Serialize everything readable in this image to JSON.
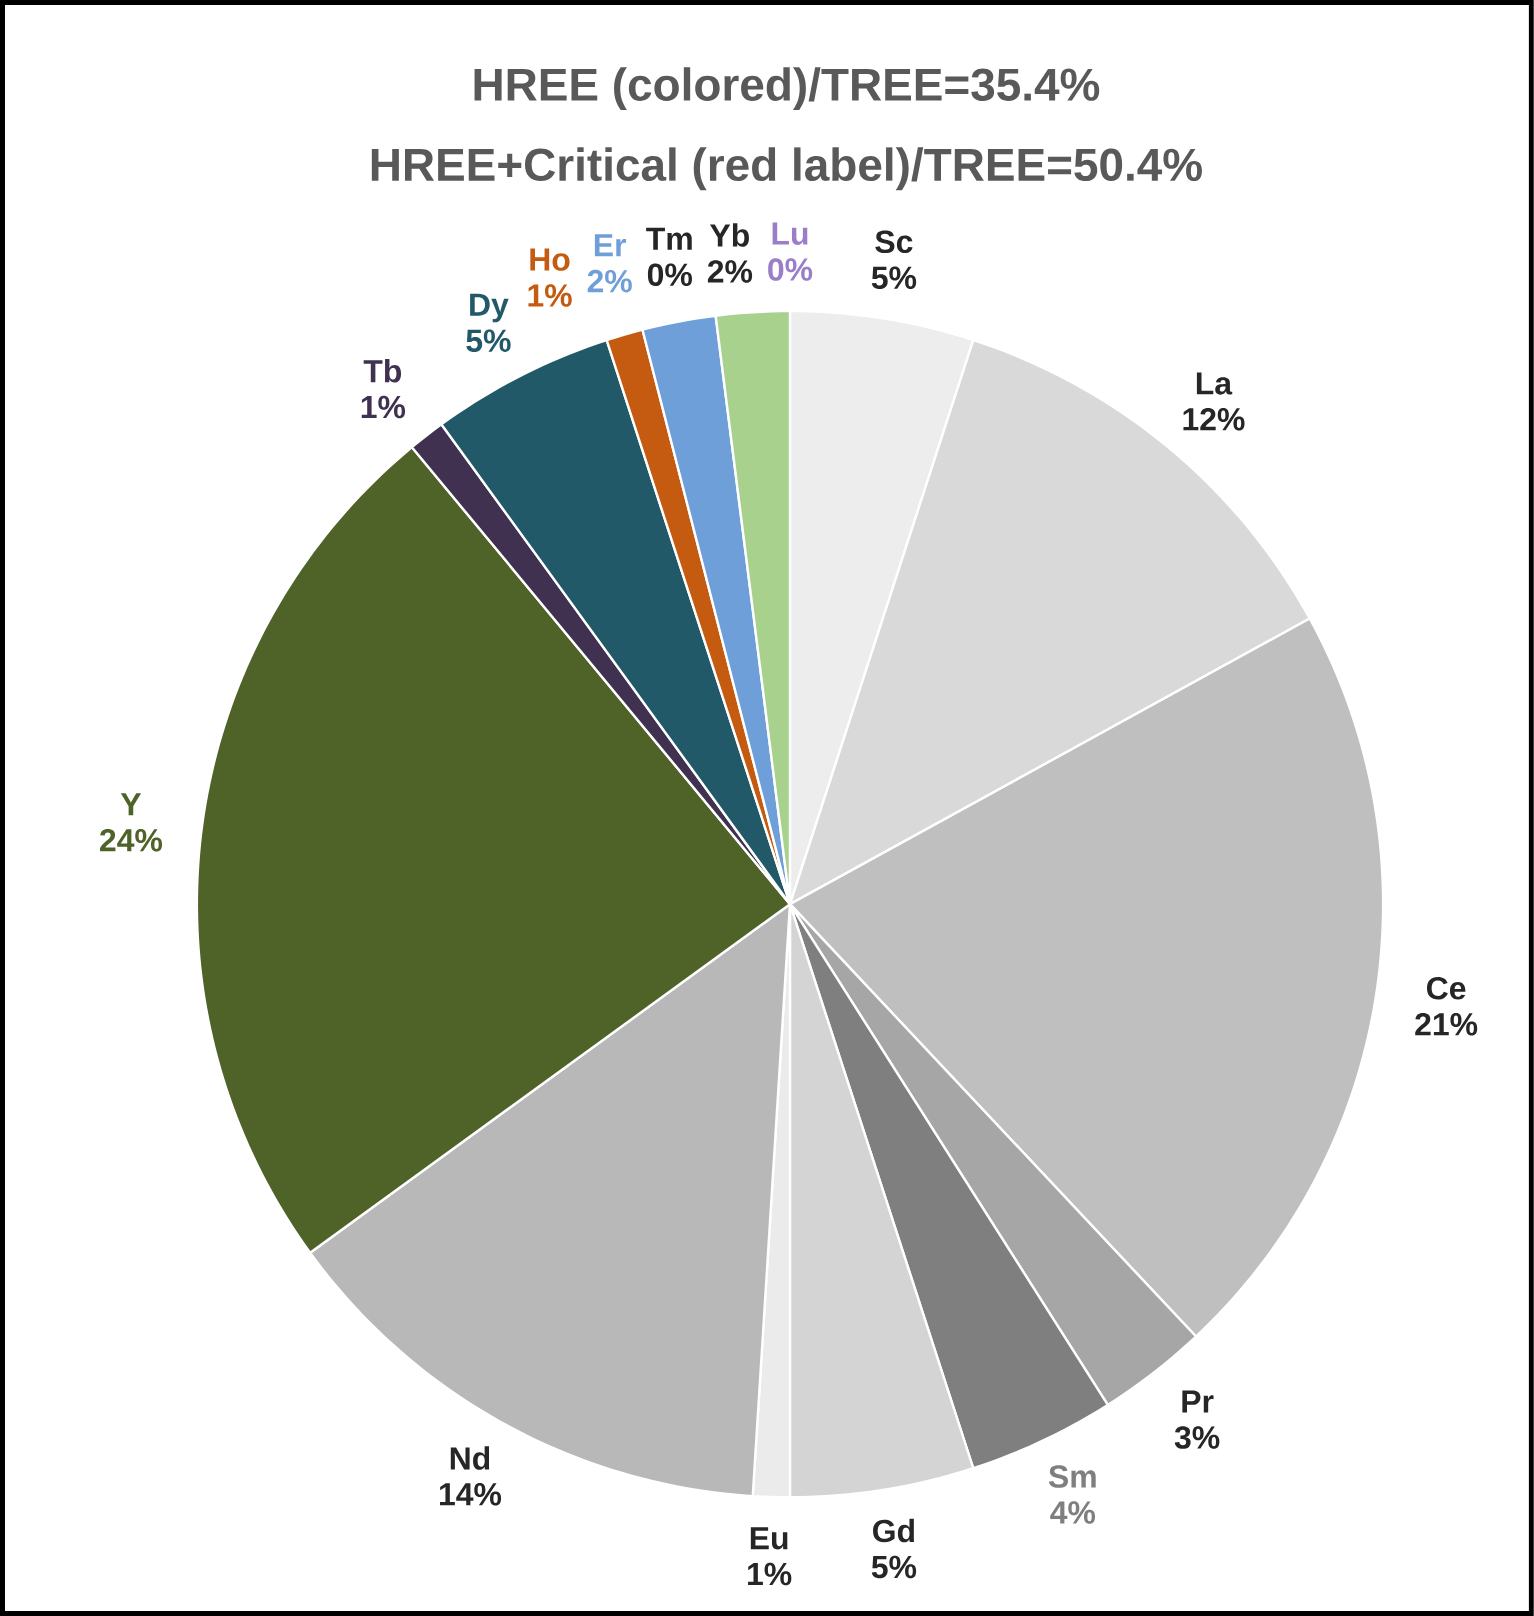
{
  "chart_data": {
    "type": "pie",
    "title": "HREE (colored)/TREE=35.4%",
    "subtitle": "HREE+Critical (red label)/TREE=50.4%",
    "categories": [
      "Sc",
      "La",
      "Ce",
      "Pr",
      "Sm",
      "Gd",
      "Eu",
      "Nd",
      "Y",
      "Tb",
      "Dy",
      "Ho",
      "Er",
      "Tm",
      "Yb",
      "Lu"
    ],
    "values": [
      5,
      12,
      21,
      3,
      4,
      5,
      1,
      14,
      24,
      1,
      5,
      1,
      2,
      0,
      2,
      0
    ],
    "value_labels": [
      "5%",
      "12%",
      "21%",
      "3%",
      "4%",
      "5%",
      "1%",
      "14%",
      "24%",
      "1%",
      "5%",
      "1%",
      "2%",
      "0%",
      "2%",
      "0%"
    ],
    "colors": [
      "#ededed",
      "#d9d9d9",
      "#bfbfbf",
      "#a6a6a6",
      "#7f7f7f",
      "#d4d4d4",
      "#ebebeb",
      "#b8b8b8",
      "#4f6228",
      "#403151",
      "#215968",
      "#c55a11",
      "#6f9fd8",
      "#e08080",
      "#a9d18e",
      "#9a7fc8"
    ]
  }
}
